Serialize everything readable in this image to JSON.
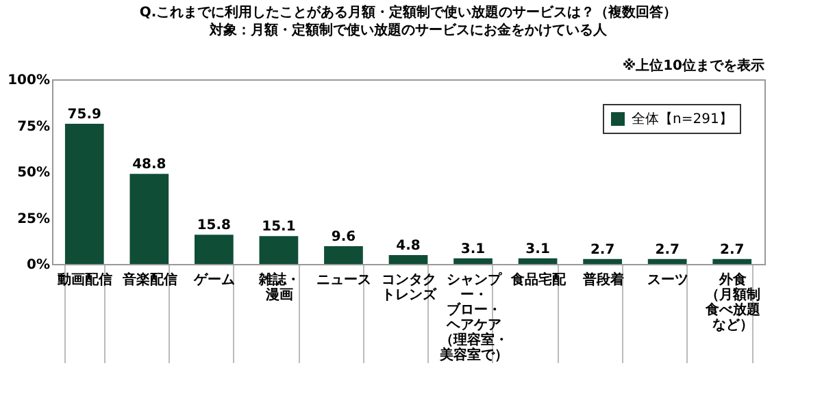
{
  "chart_data": {
    "type": "bar",
    "title": "Q.これまでに利用したことがある月額・定額制で使い放題のサービスは？（複数回答）",
    "subtitle": "対象：月額・定額制で使い放題のサービスにお金をかけている人",
    "annotations": [
      "※上位10位までを表示"
    ],
    "categories": [
      "動画配信",
      "音楽配信",
      "ゲーム",
      "雑誌・漫画",
      "ニュース",
      "コンタクトレンズ",
      "シャンプー・ブロー・ヘアケア（理容室・美容室で）",
      "食品宅配",
      "普段着",
      "スーツ",
      "外食（月額制食べ放題など）"
    ],
    "series": [
      {
        "name": "全体【n=291】",
        "color": "#0f4d36",
        "values": [
          75.9,
          48.8,
          15.8,
          15.1,
          9.6,
          4.8,
          3.1,
          3.1,
          2.7,
          2.7,
          2.7
        ]
      }
    ],
    "ylim": [
      0,
      100
    ],
    "yticks": [
      {
        "value": 0,
        "label": "0%"
      },
      {
        "value": 25,
        "label": "25%"
      },
      {
        "value": 50,
        "label": "50%"
      },
      {
        "value": 75,
        "label": "75%"
      },
      {
        "value": 100,
        "label": "100%"
      }
    ],
    "data_labels": true,
    "legend": "top right",
    "grid": false
  }
}
